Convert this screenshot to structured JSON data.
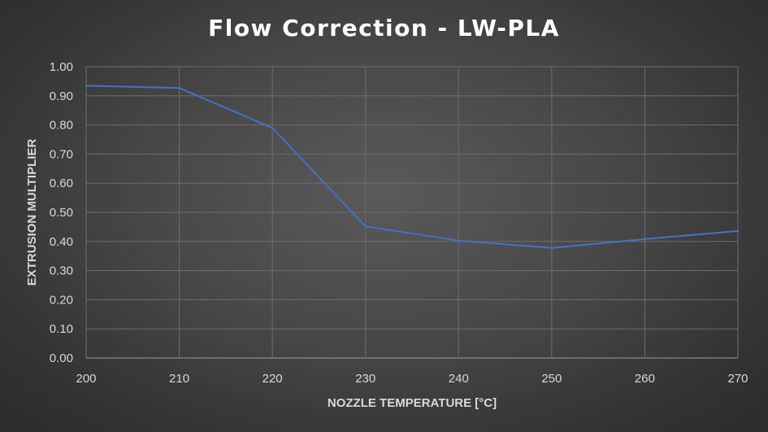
{
  "chart_data": {
    "type": "line",
    "title": "Flow Correction - LW-PLA",
    "xlabel": "NOZZLE TEMPERATURE [°C]",
    "ylabel": "EXTRUSION MULTIPLIER",
    "xlim": [
      200,
      270
    ],
    "ylim": [
      0,
      1
    ],
    "x_ticks": [
      "200",
      "210",
      "220",
      "230",
      "240",
      "250",
      "260",
      "270"
    ],
    "y_ticks": [
      "0.00",
      "0.10",
      "0.20",
      "0.30",
      "0.40",
      "0.50",
      "0.60",
      "0.70",
      "0.80",
      "0.90",
      "1.00"
    ],
    "grid": true,
    "series": [
      {
        "x": [
          200,
          210,
          220,
          230,
          240,
          250,
          260,
          270
        ],
        "values": [
          0.935,
          0.927,
          0.79,
          0.452,
          0.403,
          0.378,
          0.408,
          0.436
        ],
        "color": "#4472c4"
      }
    ]
  }
}
